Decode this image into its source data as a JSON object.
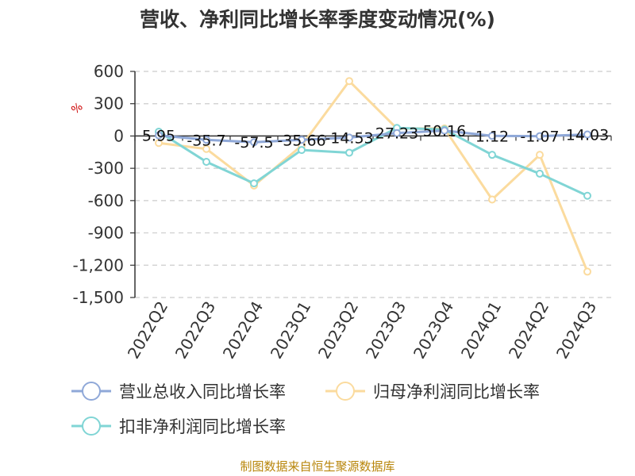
{
  "chart_data": {
    "type": "line",
    "title": "营收、净利同比增长率季度变动情况(%)",
    "unit": "%",
    "categories": [
      "2022Q2",
      "2022Q3",
      "2022Q4",
      "2023Q1",
      "2023Q2",
      "2023Q3",
      "2023Q4",
      "2024Q1",
      "2024Q2",
      "2024Q3"
    ],
    "ylim": [
      -1500,
      600
    ],
    "yticks": [
      600,
      300,
      0,
      -300,
      -600,
      -900,
      -1200,
      -1500
    ],
    "ytick_labels": [
      "600",
      "300",
      "0",
      "-300",
      "-600",
      "-900",
      "-1,200",
      "-1,500"
    ],
    "grid": true,
    "legend_position": "bottom",
    "series": [
      {
        "name": "营业总收入同比增长率",
        "color": "#8fa8d8",
        "values": [
          5.95,
          -35.7,
          -57.5,
          -35.66,
          -14.53,
          27.23,
          50.16,
          1.12,
          -1.07,
          14.03
        ],
        "labels": [
          "5.95",
          "-35.7",
          "-57.5",
          "-35.66",
          "-14.53",
          "27.23",
          "50.16",
          "1.12",
          "-1.07",
          "14.03"
        ]
      },
      {
        "name": "归母净利润同比增长率",
        "color": "#fbdb9e",
        "values": [
          -65,
          -120,
          -460,
          -90,
          510,
          70,
          70,
          -590,
          -175,
          -1260
        ]
      },
      {
        "name": "扣非净利润同比增长率",
        "color": "#80d5d5",
        "values": [
          40,
          -240,
          -440,
          -130,
          -155,
          75,
          60,
          -175,
          -350,
          -555
        ]
      }
    ]
  },
  "source": "制图数据来自恒生聚源数据库"
}
